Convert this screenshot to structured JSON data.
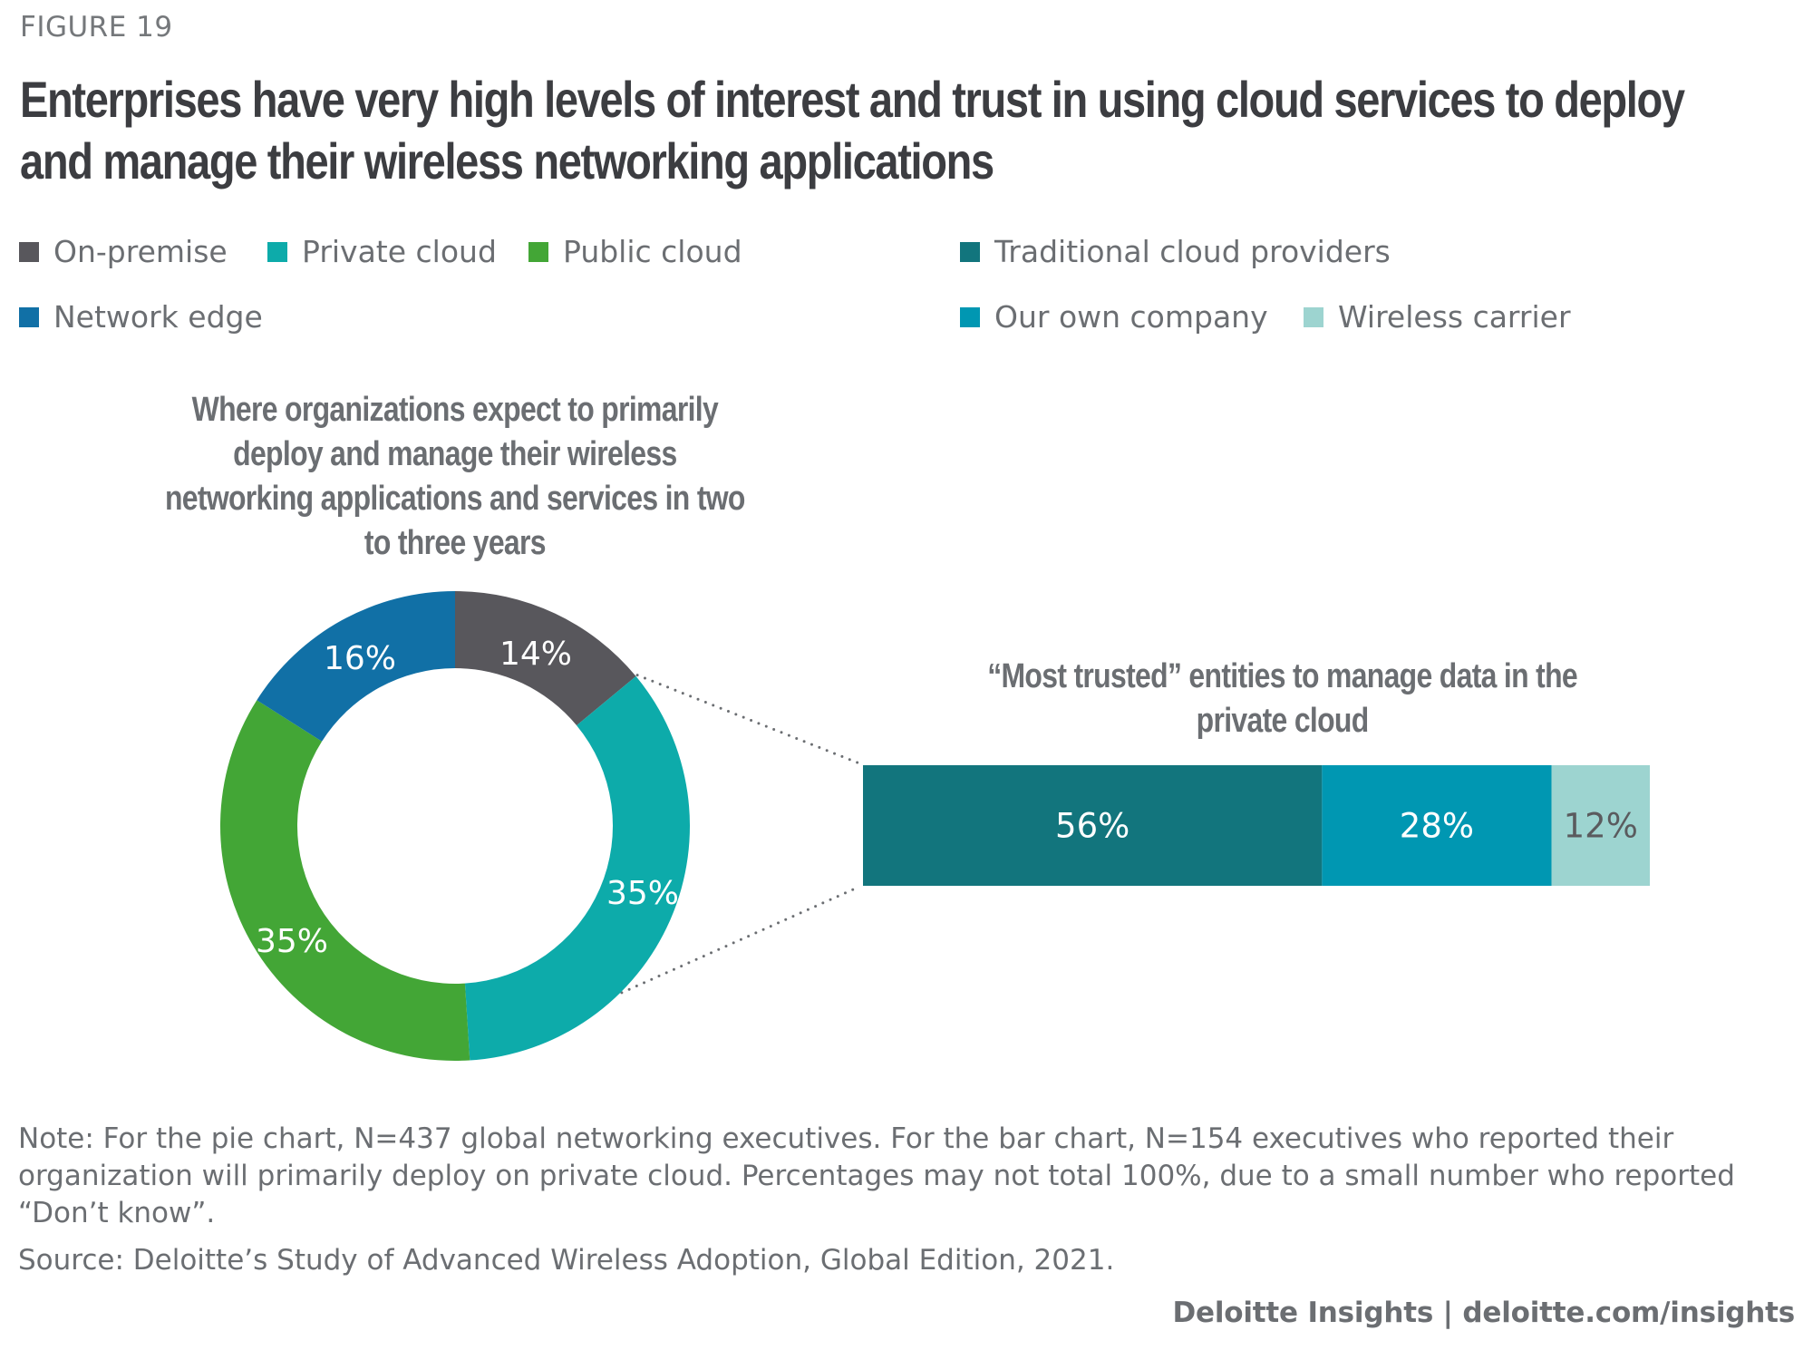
{
  "figure_label": "FIGURE 19",
  "title": "Enterprises have very high levels of interest and trust in using cloud services to deploy and manage their wireless networking applications",
  "legend_left": [
    {
      "label": "On-premise",
      "color": "#58575c"
    },
    {
      "label": "Private cloud",
      "color": "#0dabaa"
    },
    {
      "label": "Public cloud",
      "color": "#43a636"
    },
    {
      "label": "Network edge",
      "color": "#1170a6"
    }
  ],
  "legend_right": [
    {
      "label": "Traditional cloud providers",
      "color": "#12757d"
    },
    {
      "label": "Our own company",
      "color": "#0097b2"
    },
    {
      "label": "Wireless carrier",
      "color": "#9dd4d0"
    }
  ],
  "chart_data": [
    {
      "type": "pie",
      "variant": "donut",
      "title": "Where organizations expect to primarily deploy and manage their wireless networking applications and services in two to three years",
      "categories": [
        "On-premise",
        "Private cloud",
        "Public cloud",
        "Network edge"
      ],
      "values": [
        14,
        35,
        35,
        16
      ],
      "labels": [
        "14%",
        "35%",
        "35%",
        "16%"
      ],
      "colors": [
        "#58575c",
        "#0dabaa",
        "#43a636",
        "#1170a6"
      ],
      "start": "top",
      "direction": "clockwise",
      "unit": "%"
    },
    {
      "type": "bar",
      "orientation": "horizontal-stacked",
      "title": "“Most trusted” entities to manage data in the private cloud",
      "linked_to": "Private cloud",
      "categories": [
        "Traditional cloud providers",
        "Our own company",
        "Wireless carrier"
      ],
      "values": [
        56,
        28,
        12
      ],
      "labels": [
        "56%",
        "28%",
        "12%"
      ],
      "colors": [
        "#12757d",
        "#0097b2",
        "#9dd4d0"
      ],
      "label_colors": [
        "#ffffff",
        "#ffffff",
        "#5a5b5e"
      ],
      "unit": "%"
    }
  ],
  "note": "Note: For the pie chart, N=437 global networking executives. For the bar chart, N=154 executives who reported their organization will primarily deploy on private cloud. Percentages may not total 100%, due to a small number who reported “Don’t know”.",
  "source": "Source: Deloitte’s Study of Advanced Wireless Adoption, Global Edition, 2021.",
  "footer": "Deloitte Insights | deloitte.com/insights"
}
